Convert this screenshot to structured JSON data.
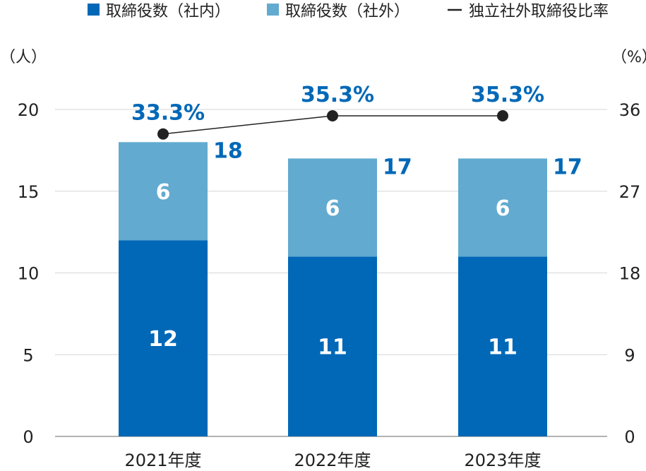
{
  "chart_data": {
    "type": "bar",
    "stacked": true,
    "categories": [
      "2021年度",
      "2022年度",
      "2023年度"
    ],
    "series": [
      {
        "name": "取締役数（社内）",
        "values": [
          12,
          11,
          11
        ],
        "color": "#0068b7",
        "axis": "left"
      },
      {
        "name": "取締役数（社外）",
        "values": [
          6,
          6,
          6
        ],
        "color": "#62aacf",
        "axis": "left"
      },
      {
        "name": "独立社外取締役比率",
        "type": "line",
        "values": [
          33.3,
          35.3,
          35.3
        ],
        "value_labels": [
          "33.3%",
          "35.3%",
          "35.3%"
        ],
        "color": "#222222",
        "axis": "right"
      }
    ],
    "totals": [
      18,
      17,
      17
    ],
    "ylabel_left": "（人）",
    "ylabel_right": "（%）",
    "ylim_left": [
      0,
      20
    ],
    "yticks_left": [
      0,
      5,
      10,
      15,
      20
    ],
    "ylim_right": [
      0,
      36
    ],
    "yticks_right": [
      0,
      9,
      18,
      27,
      36
    ],
    "grid": true,
    "legend_position": "top"
  }
}
